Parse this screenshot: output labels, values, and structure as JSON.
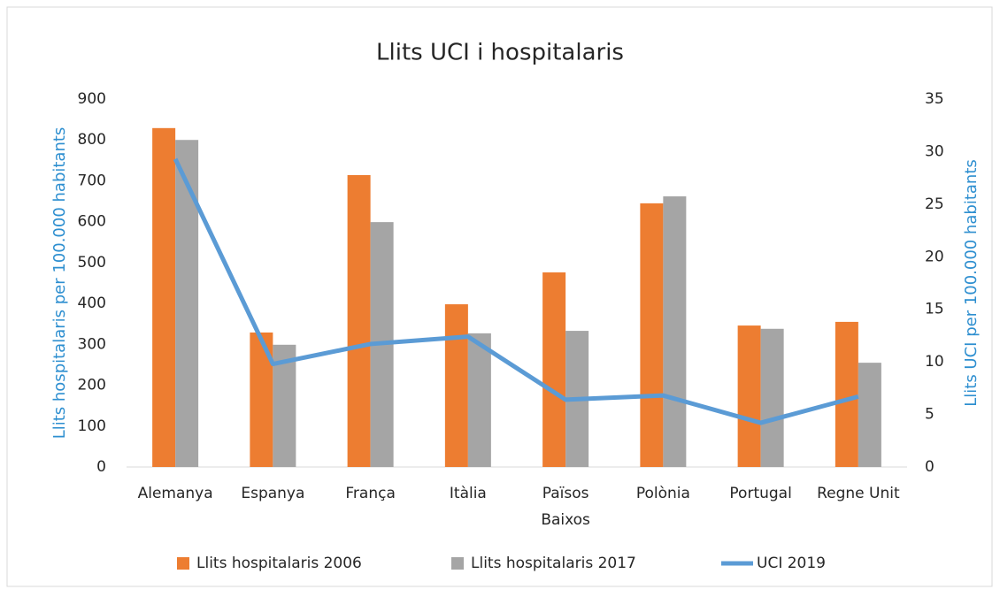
{
  "chart_data": {
    "type": "bar_line",
    "title": "Llits UCI i hospitalaris",
    "y_label": "Llits hospitalaris per 100.000 habitants",
    "y2_label": "Llits UCI per 100.000 habitants",
    "categories": [
      "Alemanya",
      "Espanya",
      "França",
      "Itàlia",
      "Països Baixos",
      "Polònia",
      "Portugal",
      "Regne Unit"
    ],
    "series": [
      {
        "name": "Llits hospitalaris 2006",
        "type": "bar",
        "color": "#ed7d31",
        "values": [
          829,
          329,
          714,
          398,
          476,
          645,
          346,
          355
        ]
      },
      {
        "name": "Llits hospitalaris 2017",
        "type": "bar",
        "color": "#a5a5a5",
        "values": [
          800,
          299,
          599,
          327,
          333,
          662,
          338,
          255
        ]
      },
      {
        "name": "UCI 2019",
        "type": "line",
        "axis": "y2",
        "color": "#5b9bd5",
        "values": [
          29.3,
          9.8,
          11.7,
          12.4,
          6.4,
          6.8,
          4.2,
          6.7
        ]
      }
    ],
    "ylim": [
      0,
      900
    ],
    "yticks": [
      0,
      100,
      200,
      300,
      400,
      500,
      600,
      700,
      800,
      900
    ],
    "y2lim": [
      0,
      35
    ],
    "y2ticks": [
      0,
      5,
      10,
      15,
      20,
      25,
      30,
      35
    ],
    "legend": "bottom"
  }
}
